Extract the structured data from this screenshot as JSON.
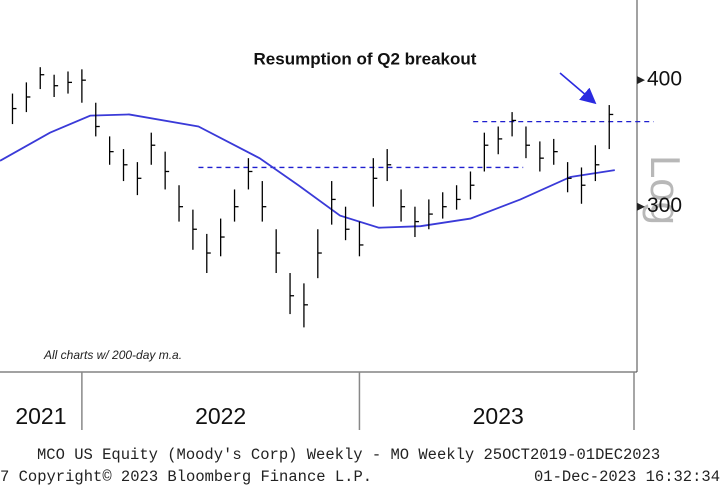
{
  "chart_data": {
    "type": "ohlc",
    "annotation": "Resumption of Q2 breakout",
    "note": "All charts w/ 200-day m.a.",
    "scale_label": "Log",
    "log_scale": true,
    "footer_line1": "MCO US Equity (Moody's Corp) Weekly - MO  Weekly 25OCT2019-01DEC2023",
    "footer_left": "7 Copyright© 2023 Bloomberg Finance L.P.",
    "footer_right": "01-Dec-2023 16:32:34",
    "xlim": [
      2021.705,
      2024.0
    ],
    "xticks": [
      2022,
      2023,
      2024
    ],
    "year_labels": [
      2021,
      2022,
      2023
    ],
    "ylim": [
      206,
      480
    ],
    "yticks": [
      300,
      400
    ],
    "price_color": "#000000",
    "x": [
      2021.75,
      2021.8,
      2021.85,
      2021.9,
      2021.95,
      2022.0,
      2022.05,
      2022.1,
      2022.15,
      2022.2,
      2022.25,
      2022.3,
      2022.35,
      2022.4,
      2022.45,
      2022.5,
      2022.55,
      2022.6,
      2022.65,
      2022.7,
      2022.75,
      2022.8,
      2022.85,
      2022.9,
      2022.95,
      2023.0,
      2023.05,
      2023.1,
      2023.15,
      2023.2,
      2023.25,
      2023.3,
      2023.35,
      2023.4,
      2023.45,
      2023.5,
      2023.55,
      2023.6,
      2023.65,
      2023.7,
      2023.75,
      2023.8,
      2023.85,
      2023.9
    ],
    "high": [
      388,
      398,
      412,
      405,
      408,
      410,
      380,
      352,
      342,
      332,
      355,
      340,
      315,
      298,
      282,
      292,
      312,
      335,
      318,
      285,
      258,
      252,
      285,
      318,
      300,
      290,
      335,
      342,
      312,
      300,
      305,
      310,
      315,
      325,
      355,
      360,
      372,
      360,
      348,
      350,
      332,
      328,
      345,
      378
    ],
    "low": [
      362,
      372,
      392,
      385,
      388,
      380,
      352,
      330,
      318,
      308,
      330,
      312,
      290,
      272,
      258,
      268,
      290,
      312,
      290,
      258,
      235,
      228,
      255,
      288,
      278,
      268,
      300,
      318,
      290,
      280,
      285,
      292,
      298,
      305,
      325,
      338,
      352,
      335,
      325,
      330,
      310,
      302,
      318,
      342
    ],
    "close": [
      375,
      385,
      405,
      395,
      398,
      400,
      360,
      340,
      330,
      320,
      345,
      325,
      300,
      285,
      270,
      280,
      300,
      325,
      300,
      270,
      245,
      240,
      270,
      305,
      285,
      275,
      320,
      330,
      300,
      290,
      295,
      300,
      305,
      315,
      345,
      350,
      365,
      345,
      335,
      340,
      320,
      315,
      330,
      370
    ],
    "ma": {
      "color": "#3a3ad8",
      "x": [
        2021.705,
        2021.885,
        2022.03,
        2022.17,
        2022.42,
        2022.64,
        2022.78,
        2022.93,
        2023.07,
        2023.22,
        2023.4,
        2023.58,
        2023.76,
        2023.92
      ],
      "values": [
        333,
        355,
        369,
        370,
        360,
        335,
        315,
        294,
        286,
        287,
        292,
        305,
        321,
        326
      ]
    },
    "hlines_color": "#1f1fcf",
    "hlines": [
      {
        "value": 364,
        "from": 2023.41,
        "to": 2024.06
      },
      {
        "value": 328,
        "from": 2022.42,
        "to": 2023.59
      }
    ]
  }
}
